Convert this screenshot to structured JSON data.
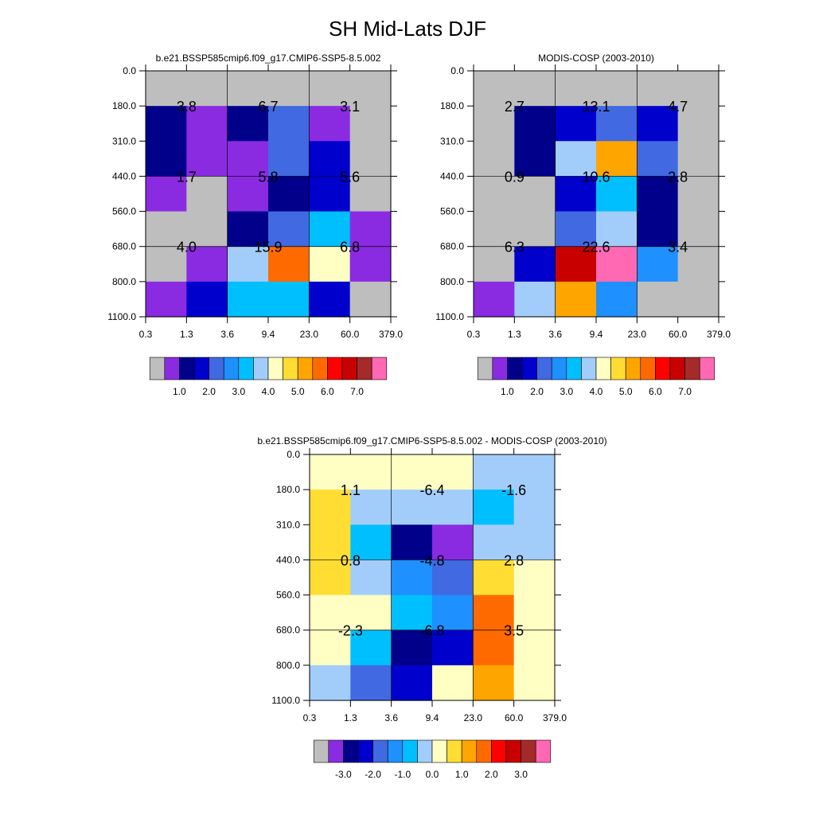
{
  "title": "SH Mid-Lats DJF",
  "colors": {
    "grey": "#BEBEBE",
    "violet": "#8A2BE2",
    "navy": "#00008B",
    "mediumblue": "#0000CD",
    "royalblue": "#4169E1",
    "dodgerblue": "#1E90FF",
    "deepskyblue": "#00BFFF",
    "lightskyblue": "#A2CDFA",
    "lightyellow": "#FFFFC4",
    "gold": "#FFDD33",
    "orange": "#FFA500",
    "darkorange": "#FF6A00",
    "red": "#FF0000",
    "darkred": "#C80000",
    "brown": "#A52A2A",
    "hotpink": "#FF69B4"
  },
  "chart_data": [
    {
      "type": "heatmap",
      "title": "b.e21.BSSP585cmip6.f09_g17.CMIP6-SSP5-8.5.002",
      "x_ticks": [
        "0.3",
        "1.3",
        "3.6",
        "9.4",
        "23.0",
        "60.0",
        "379.0"
      ],
      "y_ticks": [
        "0.0",
        "180.0",
        "310.0",
        "440.0",
        "560.0",
        "680.0",
        "800.0",
        "1100.0"
      ],
      "cells": [
        [
          "grey",
          "grey",
          "grey",
          "grey",
          "grey",
          "grey"
        ],
        [
          "navy",
          "violet",
          "navy",
          "royalblue",
          "violet",
          "grey"
        ],
        [
          "navy",
          "violet",
          "violet",
          "royalblue",
          "mediumblue",
          "grey"
        ],
        [
          "violet",
          "grey",
          "violet",
          "navy",
          "mediumblue",
          "grey"
        ],
        [
          "grey",
          "grey",
          "navy",
          "royalblue",
          "deepskyblue",
          "violet"
        ],
        [
          "grey",
          "violet",
          "lightskyblue",
          "darkorange",
          "lightyellow",
          "violet"
        ],
        [
          "violet",
          "mediumblue",
          "deepskyblue",
          "deepskyblue",
          "mediumblue",
          "grey"
        ]
      ],
      "value_labels": [
        [
          "3.8",
          "6.7",
          "3.1"
        ],
        [
          "1.7",
          "5.8",
          "5.6"
        ],
        [
          "4.0",
          "15.9",
          "6.8"
        ]
      ],
      "colorbar": {
        "colors": [
          "grey",
          "violet",
          "navy",
          "mediumblue",
          "royalblue",
          "dodgerblue",
          "deepskyblue",
          "lightskyblue",
          "lightyellow",
          "gold",
          "orange",
          "darkorange",
          "red",
          "darkred",
          "brown",
          "hotpink"
        ],
        "labels": [
          "1.0",
          "2.0",
          "3.0",
          "4.0",
          "5.0",
          "6.0",
          "7.0"
        ]
      }
    },
    {
      "type": "heatmap",
      "title": "MODIS-COSP (2003-2010)",
      "x_ticks": [
        "0.3",
        "1.3",
        "3.6",
        "9.4",
        "23.0",
        "60.0",
        "379.0"
      ],
      "y_ticks": [
        "0.0",
        "180.0",
        "310.0",
        "440.0",
        "560.0",
        "680.0",
        "800.0",
        "1100.0"
      ],
      "cells": [
        [
          "grey",
          "grey",
          "grey",
          "grey",
          "grey",
          "grey"
        ],
        [
          "grey",
          "navy",
          "mediumblue",
          "royalblue",
          "mediumblue",
          "grey"
        ],
        [
          "grey",
          "navy",
          "lightskyblue",
          "orange",
          "royalblue",
          "grey"
        ],
        [
          "grey",
          "grey",
          "mediumblue",
          "deepskyblue",
          "navy",
          "grey"
        ],
        [
          "grey",
          "grey",
          "royalblue",
          "lightskyblue",
          "navy",
          "grey"
        ],
        [
          "grey",
          "mediumblue",
          "darkred",
          "hotpink",
          "dodgerblue",
          "grey"
        ],
        [
          "violet",
          "lightskyblue",
          "orange",
          "dodgerblue",
          "grey",
          "grey"
        ]
      ],
      "value_labels": [
        [
          "2.7",
          "13.1",
          "4.7"
        ],
        [
          "0.9",
          "10.6",
          "2.8"
        ],
        [
          "6.3",
          "22.6",
          "3.4"
        ]
      ],
      "colorbar": {
        "colors": [
          "grey",
          "violet",
          "navy",
          "mediumblue",
          "royalblue",
          "dodgerblue",
          "deepskyblue",
          "lightskyblue",
          "lightyellow",
          "gold",
          "orange",
          "darkorange",
          "red",
          "darkred",
          "brown",
          "hotpink"
        ],
        "labels": [
          "1.0",
          "2.0",
          "3.0",
          "4.0",
          "5.0",
          "6.0",
          "7.0"
        ]
      }
    },
    {
      "type": "heatmap",
      "title": "b.e21.BSSP585cmip6.f09_g17.CMIP6-SSP5-8.5.002 - MODIS-COSP (2003-2010)",
      "x_ticks": [
        "0.3",
        "1.3",
        "3.6",
        "9.4",
        "23.0",
        "60.0",
        "379.0"
      ],
      "y_ticks": [
        "0.0",
        "180.0",
        "310.0",
        "440.0",
        "560.0",
        "680.0",
        "800.0",
        "1100.0"
      ],
      "cells": [
        [
          "lightyellow",
          "lightyellow",
          "lightyellow",
          "lightyellow",
          "lightskyblue",
          "lightskyblue"
        ],
        [
          "gold",
          "lightskyblue",
          "lightskyblue",
          "lightskyblue",
          "deepskyblue",
          "lightskyblue"
        ],
        [
          "gold",
          "deepskyblue",
          "navy",
          "violet",
          "lightskyblue",
          "lightskyblue"
        ],
        [
          "gold",
          "lightskyblue",
          "dodgerblue",
          "royalblue",
          "gold",
          "lightyellow"
        ],
        [
          "lightyellow",
          "lightyellow",
          "deepskyblue",
          "dodgerblue",
          "darkorange",
          "lightyellow"
        ],
        [
          "lightyellow",
          "deepskyblue",
          "navy",
          "mediumblue",
          "darkorange",
          "lightyellow"
        ],
        [
          "lightskyblue",
          "royalblue",
          "mediumblue",
          "lightyellow",
          "orange",
          "lightyellow"
        ]
      ],
      "value_labels": [
        [
          "1.1",
          "-6.4",
          "-1.6"
        ],
        [
          "0.8",
          "-4.8",
          "2.8"
        ],
        [
          "-2.3",
          "-6.8",
          "3.5"
        ]
      ],
      "colorbar": {
        "colors": [
          "grey",
          "violet",
          "navy",
          "mediumblue",
          "royalblue",
          "dodgerblue",
          "deepskyblue",
          "lightskyblue",
          "lightyellow",
          "gold",
          "orange",
          "darkorange",
          "red",
          "darkred",
          "brown",
          "hotpink"
        ],
        "labels": [
          "-3.0",
          "-2.0",
          "-1.0",
          "0.0",
          "1.0",
          "2.0",
          "3.0"
        ]
      }
    }
  ]
}
